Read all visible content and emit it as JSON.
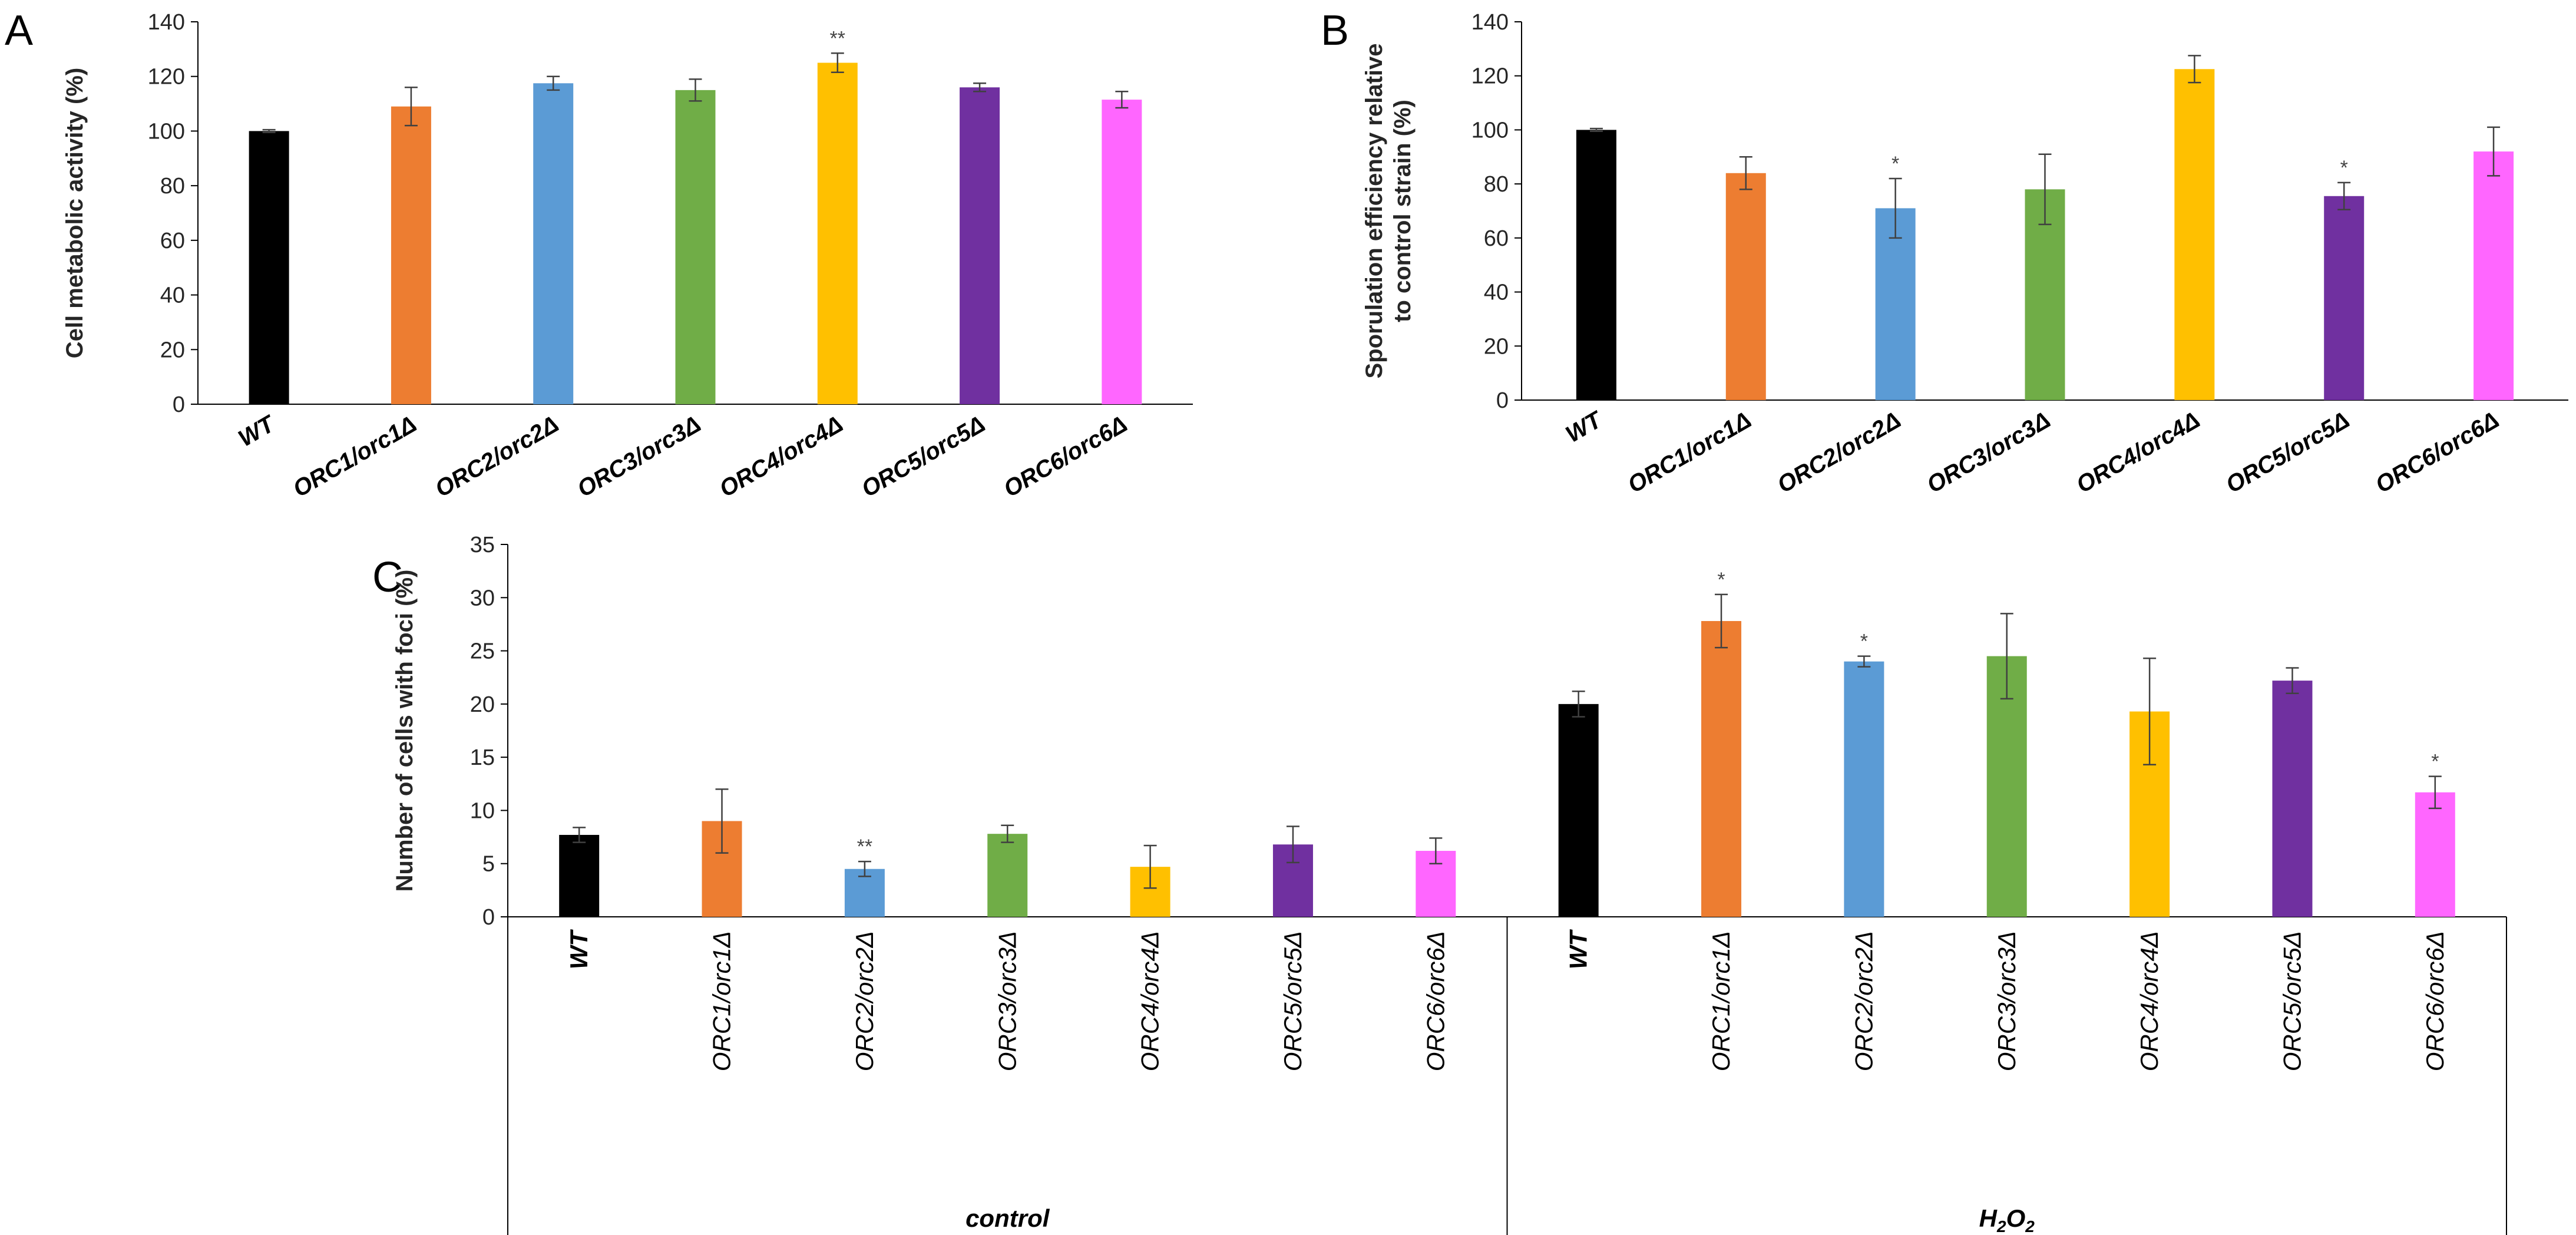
{
  "colors": [
    "#000000",
    "#ED7D31",
    "#5B9BD5",
    "#70AD47",
    "#FFC000",
    "#7030A0",
    "#FF66FF"
  ],
  "chart_data": [
    {
      "panel": "A",
      "type": "bar",
      "ylabel": "Cell metabolic activity (%)",
      "ylim": [
        0,
        140
      ],
      "yticks": [
        0,
        20,
        40,
        60,
        80,
        100,
        120,
        140
      ],
      "categories": [
        "WT",
        "ORC1/orc1Δ",
        "ORC2/orc2Δ",
        "ORC3/orc3Δ",
        "ORC4/orc4Δ",
        "ORC5/orc5Δ",
        "ORC6/orc6Δ"
      ],
      "values": [
        100,
        109,
        117.5,
        115,
        125,
        116,
        111.5
      ],
      "errors": [
        0.5,
        7,
        2.5,
        4,
        3.5,
        1.5,
        3
      ],
      "annotations": [
        "",
        "",
        "",
        "",
        "**",
        "",
        ""
      ]
    },
    {
      "panel": "B",
      "type": "bar",
      "ylabel": "Sporulation efficiency relative to control strain (%)",
      "ylabel_lines": [
        "Sporulation efficiency relative",
        "to control strain (%)"
      ],
      "ylim": [
        0,
        140
      ],
      "yticks": [
        0,
        20,
        40,
        60,
        80,
        100,
        120,
        140
      ],
      "categories": [
        "WT",
        "ORC1/orc1Δ",
        "ORC2/orc2Δ",
        "ORC3/orc3Δ",
        "ORC4/orc4Δ",
        "ORC5/orc5Δ",
        "ORC6/orc6Δ"
      ],
      "values": [
        100,
        84,
        71,
        78,
        122.5,
        75.5,
        92
      ],
      "errors": [
        0.5,
        6,
        11,
        13,
        5,
        5,
        9
      ],
      "annotations": [
        "",
        "",
        "*",
        "",
        "",
        "*",
        ""
      ]
    },
    {
      "panel": "C",
      "type": "bar",
      "ylabel": "Number of cells with foci (%)",
      "ylim": [
        0,
        35
      ],
      "yticks": [
        0,
        5,
        10,
        15,
        20,
        25,
        30,
        35
      ],
      "groups": [
        {
          "name": "control",
          "categories": [
            "WT",
            "ORC1/orc1Δ",
            "ORC2/orc2Δ",
            "ORC3/orc3Δ",
            "ORC4/orc4Δ",
            "ORC5/orc5Δ",
            "ORC6/orc6Δ"
          ],
          "values": [
            7.7,
            9,
            4.5,
            7.8,
            4.7,
            6.8,
            6.2
          ],
          "errors": [
            0.7,
            3,
            0.7,
            0.8,
            2,
            1.7,
            1.2
          ],
          "annotations": [
            "",
            "",
            "**",
            "",
            "",
            "",
            ""
          ]
        },
        {
          "name": "H2O2",
          "categories": [
            "WT",
            "ORC1/orc1Δ",
            "ORC2/orc2Δ",
            "ORC3/orc3Δ",
            "ORC4/orc4Δ",
            "ORC5/orc5Δ",
            "ORC6/orc6Δ"
          ],
          "values": [
            20,
            27.8,
            24,
            24.5,
            19.3,
            22.2,
            11.7
          ],
          "errors": [
            1.2,
            2.5,
            0.5,
            4,
            5,
            1.2,
            1.5
          ],
          "annotations": [
            "",
            "*",
            "*",
            "",
            "",
            "",
            "*"
          ]
        }
      ]
    }
  ]
}
